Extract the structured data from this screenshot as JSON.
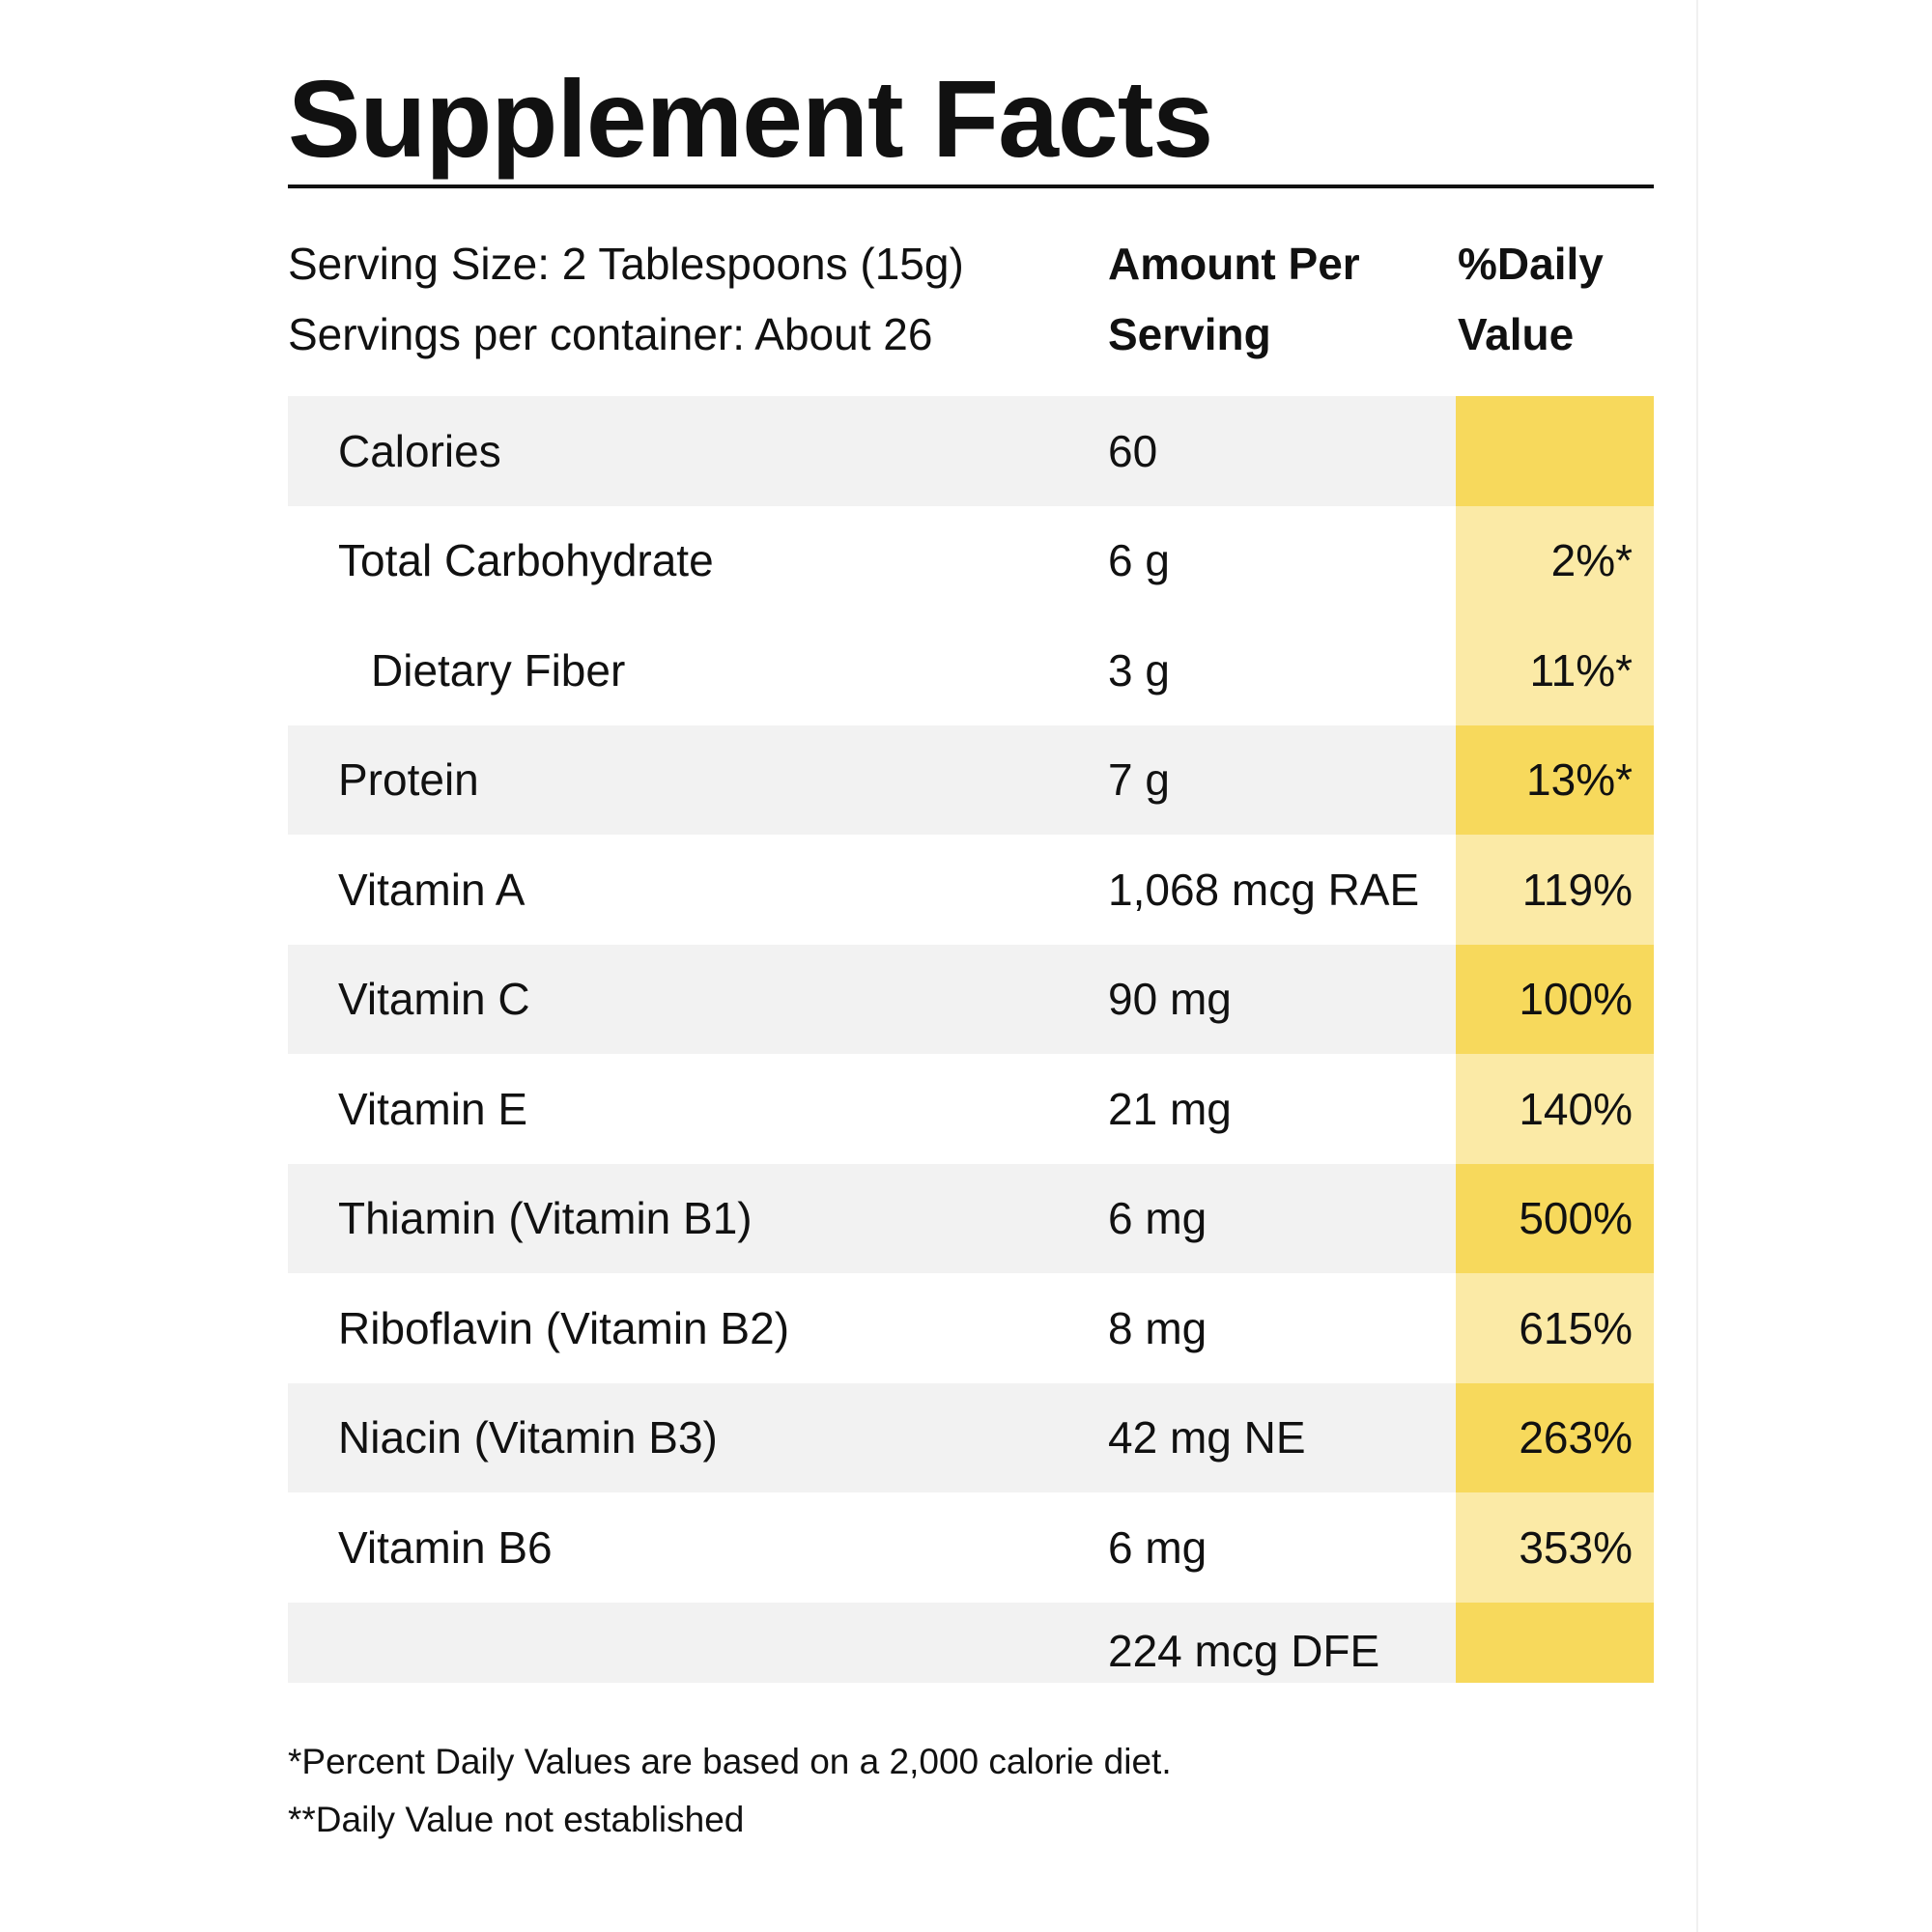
{
  "title": "Supplement Facts",
  "serving": {
    "size": "Serving Size: 2 Tablespoons (15g)",
    "per_container": "Servings per container: About 26"
  },
  "columns": {
    "amount_line1": "Amount Per",
    "amount_line2": "Serving",
    "dv_line1": "%Daily",
    "dv_line2": "Value"
  },
  "rows": [
    {
      "name": "Calories",
      "amount": "60",
      "dv": ""
    },
    {
      "name": "Total Carbohydrate",
      "amount": "6 g",
      "dv": "2%*"
    },
    {
      "name": "Dietary Fiber",
      "amount": "3 g",
      "dv": "11%*"
    },
    {
      "name": "Protein",
      "amount": "7 g",
      "dv": "13%*"
    },
    {
      "name": "Vitamin A",
      "amount": "1,068 mcg RAE",
      "dv": "119%"
    },
    {
      "name": "Vitamin C",
      "amount": "90 mg",
      "dv": "100%"
    },
    {
      "name": "Vitamin E",
      "amount": "21 mg",
      "dv": "140%"
    },
    {
      "name": "Thiamin (Vitamin B1)",
      "amount": "6 mg",
      "dv": "500%"
    },
    {
      "name": "Riboflavin (Vitamin B2)",
      "amount": "8 mg",
      "dv": "615%"
    },
    {
      "name": "Niacin (Vitamin B3)",
      "amount": "42 mg NE",
      "dv": "263%"
    },
    {
      "name": "Vitamin B6",
      "amount": "6 mg",
      "dv": "353%"
    },
    {
      "name": "",
      "amount": "224 mcg DFE",
      "dv": ""
    }
  ],
  "footnotes": {
    "line1": "*Percent Daily Values are based on a 2,000 calorie diet.",
    "line2": "**Daily Value not established"
  },
  "colors": {
    "dv_light": "#fbeaa6",
    "dv_dark": "#f7d95c",
    "row_shade": "#f2f2f2"
  }
}
